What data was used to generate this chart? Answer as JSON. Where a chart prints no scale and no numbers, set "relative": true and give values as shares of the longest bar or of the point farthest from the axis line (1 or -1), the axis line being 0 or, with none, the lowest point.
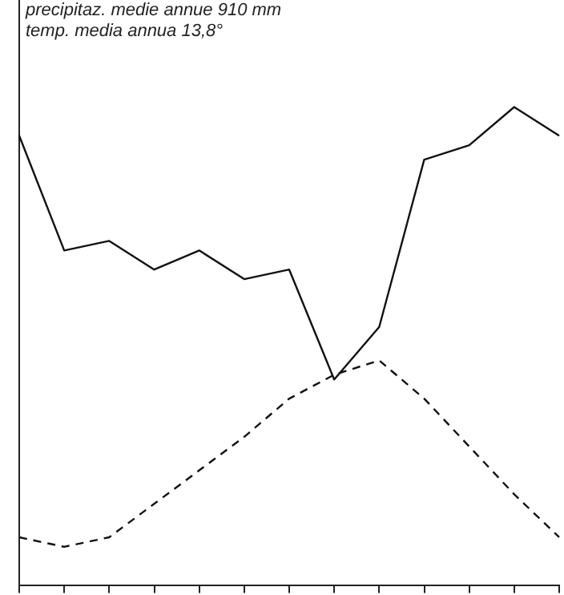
{
  "chart_data": {
    "type": "line",
    "relative": true,
    "categories": [
      null,
      null,
      null,
      null,
      null,
      null,
      null,
      null,
      null,
      null,
      null,
      null,
      null
    ],
    "series": [
      {
        "color": "#111111",
        "line_style": "solid",
        "values": [
          0.94,
          0.7,
          0.72,
          0.66,
          0.7,
          0.64,
          0.66,
          0.43,
          0.54,
          0.89,
          0.92,
          1,
          0.94
        ]
      },
      {
        "color": "#111111",
        "line_style": "dashed",
        "values": [
          0.1,
          0.08,
          0.1,
          0.17,
          0.24,
          0.31,
          0.39,
          0.44,
          0.47,
          0.39,
          0.29,
          0.19,
          0.1
        ]
      }
    ],
    "annotations": [
      "precipitaz. medie annue 910 mm",
      "temp. media annua 13,8°"
    ],
    "marker": "none",
    "grid": false,
    "legend": false
  }
}
